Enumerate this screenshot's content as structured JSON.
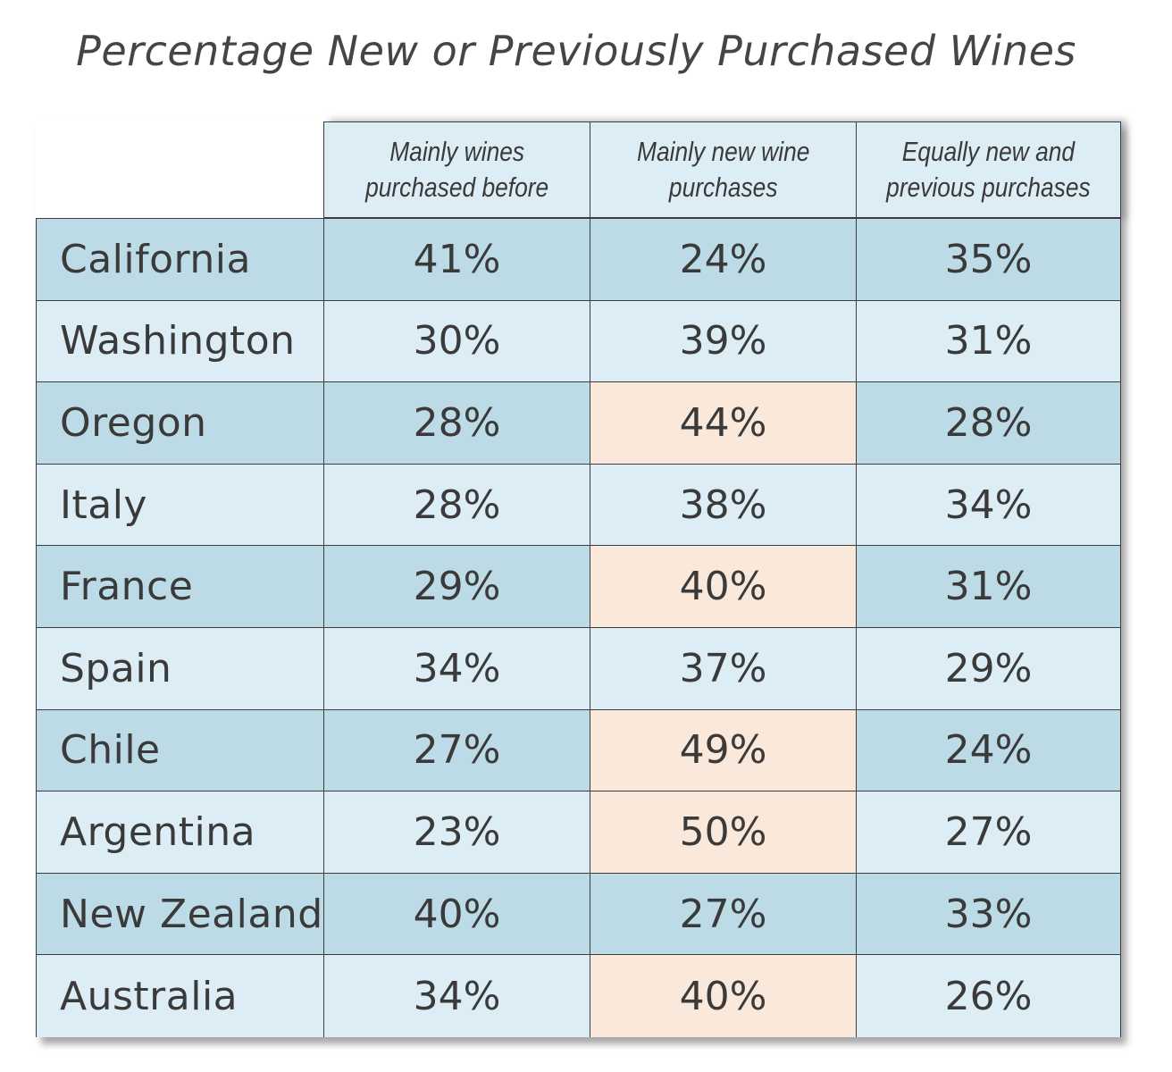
{
  "chart_data": {
    "type": "table",
    "title": "Percentage New or Previously Purchased Wines",
    "columns": [
      "Mainly wines\npurchased before",
      "Mainly new wine\npurchases",
      "Equally new and\nprevious purchases"
    ],
    "rows": [
      {
        "label": "California",
        "values": [
          "41%",
          "24%",
          "35%"
        ],
        "highlight": [
          false,
          false,
          false
        ]
      },
      {
        "label": "Washington",
        "values": [
          "30%",
          "39%",
          "31%"
        ],
        "highlight": [
          false,
          false,
          false
        ]
      },
      {
        "label": "Oregon",
        "values": [
          "28%",
          "44%",
          "28%"
        ],
        "highlight": [
          false,
          true,
          false
        ]
      },
      {
        "label": "Italy",
        "values": [
          "28%",
          "38%",
          "34%"
        ],
        "highlight": [
          false,
          false,
          false
        ]
      },
      {
        "label": "France",
        "values": [
          "29%",
          "40%",
          "31%"
        ],
        "highlight": [
          false,
          true,
          false
        ]
      },
      {
        "label": "Spain",
        "values": [
          "34%",
          "37%",
          "29%"
        ],
        "highlight": [
          false,
          false,
          false
        ]
      },
      {
        "label": "Chile",
        "values": [
          "27%",
          "49%",
          "24%"
        ],
        "highlight": [
          false,
          true,
          false
        ]
      },
      {
        "label": "Argentina",
        "values": [
          "23%",
          "50%",
          "27%"
        ],
        "highlight": [
          false,
          true,
          false
        ]
      },
      {
        "label": "New Zealand",
        "values": [
          "40%",
          "27%",
          "33%"
        ],
        "highlight": [
          false,
          false,
          false
        ]
      },
      {
        "label": "Australia",
        "values": [
          "34%",
          "40%",
          "26%"
        ],
        "highlight": [
          false,
          true,
          false
        ]
      }
    ],
    "colors": {
      "row_dark": "#bcdbe6",
      "row_light": "#ddedf5",
      "highlight": "#fae8da",
      "border": "#3c3c3c"
    }
  }
}
